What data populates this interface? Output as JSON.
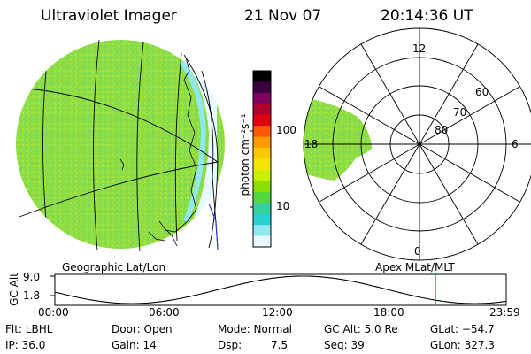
{
  "header": {
    "instrument": "Ultraviolet Imager",
    "date": "21 Nov 07",
    "time": "20:14:36 UT"
  },
  "colorbar": {
    "unit_label": "photon cm⁻²s⁻¹",
    "ticks": [
      "100",
      "10"
    ],
    "colors": [
      "#000000",
      "#3a0040",
      "#800060",
      "#b00030",
      "#e00010",
      "#ff5a00",
      "#ff9a00",
      "#ffc800",
      "#f0e600",
      "#c8f000",
      "#8ce000",
      "#54d640",
      "#34d0a0",
      "#28d0d0",
      "#90e8f0",
      "#e8f8ff"
    ]
  },
  "geo_panel": {
    "caption": "Geographic Lat/Lon"
  },
  "polar_panel": {
    "caption": "Apex MLat/MLT",
    "mlt_labels": {
      "top": "12",
      "left": "18",
      "right": "6",
      "bottom": "0"
    },
    "lat_labels": [
      "60",
      "70",
      "80"
    ]
  },
  "altitude_plot": {
    "ylabel": "GC Alt",
    "ymax": "9.0",
    "ymin": "1.8",
    "x_ticks": [
      "00:00",
      "06:00",
      "12:00",
      "18:00",
      "23:59"
    ],
    "current_time_fraction": 0.843,
    "marker_color": "#e00000"
  },
  "status": {
    "flt": "Flt: LBHL",
    "ip": "IP: 36.0",
    "door": "Door: Open",
    "gain": "Gain: 14",
    "mode": "Mode: Normal",
    "dsp_label": "Dsp:",
    "dsp_value": "7.5",
    "gcalt": "GC Alt: 5.0 Re",
    "seq": "Seq: 39",
    "glat": "GLat: −54.7",
    "glon": "GLon: 327.3"
  }
}
